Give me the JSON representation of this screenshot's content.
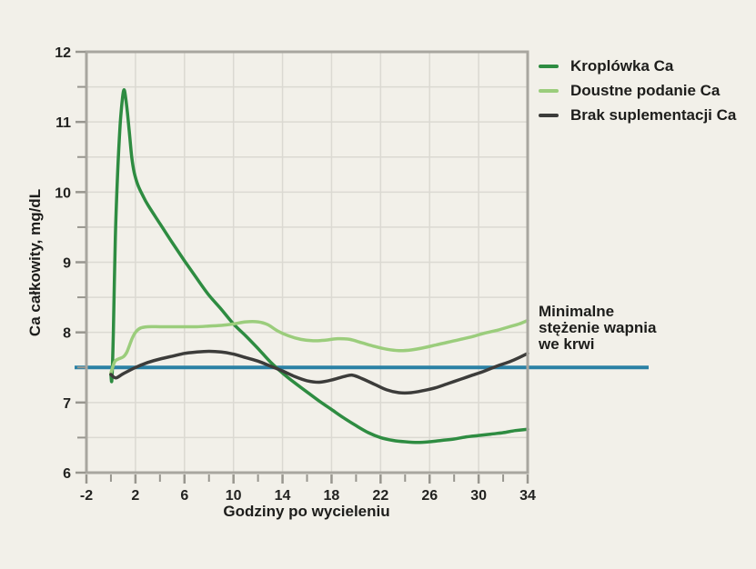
{
  "chart_data": {
    "type": "line",
    "title": "",
    "xlabel": "Godziny po wycieleniu",
    "ylabel": "Ca całkowity, mg/dL",
    "xlim": [
      -2,
      34
    ],
    "ylim": [
      6,
      12
    ],
    "x_ticks_major": [
      -2,
      2,
      6,
      10,
      14,
      18,
      22,
      26,
      30,
      34
    ],
    "x_ticks_minor": [
      0,
      4,
      8,
      12,
      16,
      20,
      24,
      28,
      32
    ],
    "y_ticks_major": [
      6,
      7,
      8,
      9,
      10,
      11,
      12
    ],
    "y_ticks_minor": [
      6.5,
      7.5,
      8.5,
      9.5,
      10.5,
      11.5
    ],
    "grid": {
      "on": true,
      "vertical_every_hours": 4,
      "horizontal_every_mgdl": 0.5
    },
    "legend_position": "top-right",
    "series": [
      {
        "name": "Kroplówka Ca",
        "color": "#2e8c41",
        "points": [
          [
            0,
            7.4
          ],
          [
            0.08,
            7.33
          ],
          [
            0.2,
            8.0
          ],
          [
            0.35,
            9.3
          ],
          [
            0.55,
            10.3
          ],
          [
            0.75,
            10.95
          ],
          [
            0.95,
            11.35
          ],
          [
            1.1,
            11.45
          ],
          [
            1.3,
            11.2
          ],
          [
            1.5,
            10.85
          ],
          [
            1.7,
            10.5
          ],
          [
            1.9,
            10.28
          ],
          [
            2.2,
            10.1
          ],
          [
            2.6,
            9.95
          ],
          [
            3,
            9.82
          ],
          [
            4,
            9.55
          ],
          [
            5,
            9.28
          ],
          [
            6,
            9.02
          ],
          [
            7,
            8.77
          ],
          [
            8,
            8.53
          ],
          [
            9,
            8.33
          ],
          [
            10,
            8.12
          ],
          [
            11,
            7.95
          ],
          [
            12,
            7.77
          ],
          [
            13,
            7.58
          ],
          [
            14,
            7.42
          ],
          [
            15,
            7.28
          ],
          [
            16,
            7.15
          ],
          [
            17,
            7.02
          ],
          [
            18,
            6.9
          ],
          [
            19,
            6.78
          ],
          [
            20,
            6.67
          ],
          [
            21,
            6.57
          ],
          [
            22,
            6.5
          ],
          [
            23,
            6.46
          ],
          [
            24,
            6.44
          ],
          [
            25,
            6.43
          ],
          [
            26,
            6.44
          ],
          [
            27,
            6.46
          ],
          [
            28,
            6.48
          ],
          [
            29,
            6.51
          ],
          [
            30,
            6.53
          ],
          [
            31,
            6.55
          ],
          [
            32,
            6.57
          ],
          [
            33,
            6.6
          ],
          [
            34,
            6.62
          ]
        ]
      },
      {
        "name": "Doustne podanie Ca",
        "color": "#9bcd7c",
        "points": [
          [
            0,
            7.42
          ],
          [
            0.3,
            7.58
          ],
          [
            0.6,
            7.62
          ],
          [
            1,
            7.65
          ],
          [
            1.3,
            7.72
          ],
          [
            1.7,
            7.9
          ],
          [
            2,
            8.0
          ],
          [
            2.4,
            8.06
          ],
          [
            3,
            8.08
          ],
          [
            4,
            8.08
          ],
          [
            5,
            8.08
          ],
          [
            6,
            8.08
          ],
          [
            7,
            8.08
          ],
          [
            8,
            8.09
          ],
          [
            9,
            8.1
          ],
          [
            10,
            8.12
          ],
          [
            11,
            8.15
          ],
          [
            12,
            8.15
          ],
          [
            12.8,
            8.11
          ],
          [
            13.6,
            8.02
          ],
          [
            14.5,
            7.95
          ],
          [
            15.5,
            7.9
          ],
          [
            16.5,
            7.88
          ],
          [
            17.5,
            7.89
          ],
          [
            18.5,
            7.91
          ],
          [
            19.5,
            7.9
          ],
          [
            20.5,
            7.85
          ],
          [
            21.5,
            7.8
          ],
          [
            22.5,
            7.76
          ],
          [
            23.5,
            7.74
          ],
          [
            24.5,
            7.75
          ],
          [
            25.5,
            7.78
          ],
          [
            26.5,
            7.82
          ],
          [
            27.5,
            7.86
          ],
          [
            28.5,
            7.9
          ],
          [
            29.5,
            7.94
          ],
          [
            30.5,
            7.99
          ],
          [
            31.5,
            8.03
          ],
          [
            32.5,
            8.08
          ],
          [
            33.3,
            8.12
          ],
          [
            34,
            8.17
          ]
        ]
      },
      {
        "name": "Brak suplementacji Ca",
        "color": "#3c3c3a",
        "points": [
          [
            0,
            7.4
          ],
          [
            0.4,
            7.35
          ],
          [
            1,
            7.41
          ],
          [
            2,
            7.5
          ],
          [
            3,
            7.57
          ],
          [
            4,
            7.62
          ],
          [
            5,
            7.66
          ],
          [
            6,
            7.7
          ],
          [
            7,
            7.72
          ],
          [
            8,
            7.73
          ],
          [
            9,
            7.72
          ],
          [
            10,
            7.69
          ],
          [
            11,
            7.64
          ],
          [
            12,
            7.59
          ],
          [
            13,
            7.52
          ],
          [
            14,
            7.45
          ],
          [
            15,
            7.37
          ],
          [
            16,
            7.31
          ],
          [
            17,
            7.29
          ],
          [
            18,
            7.32
          ],
          [
            19,
            7.37
          ],
          [
            19.7,
            7.39
          ],
          [
            20.5,
            7.34
          ],
          [
            21.5,
            7.26
          ],
          [
            22.5,
            7.18
          ],
          [
            23.5,
            7.14
          ],
          [
            24.5,
            7.14
          ],
          [
            25.5,
            7.17
          ],
          [
            26.5,
            7.21
          ],
          [
            27.5,
            7.27
          ],
          [
            28.5,
            7.33
          ],
          [
            29.5,
            7.39
          ],
          [
            30.5,
            7.45
          ],
          [
            31.5,
            7.52
          ],
          [
            32.5,
            7.58
          ],
          [
            33.3,
            7.64
          ],
          [
            34,
            7.7
          ]
        ]
      }
    ],
    "threshold": {
      "value": 7.5,
      "color": "#2b81a5",
      "label_lines": [
        "Minimalne",
        "stężenie wapnia",
        "we krwi"
      ]
    }
  },
  "colors": {
    "background": "#f2f0e9",
    "grid": "#dbd9d2",
    "spine": "#a8a69f",
    "tick": "#98968f",
    "text": "#232321"
  }
}
